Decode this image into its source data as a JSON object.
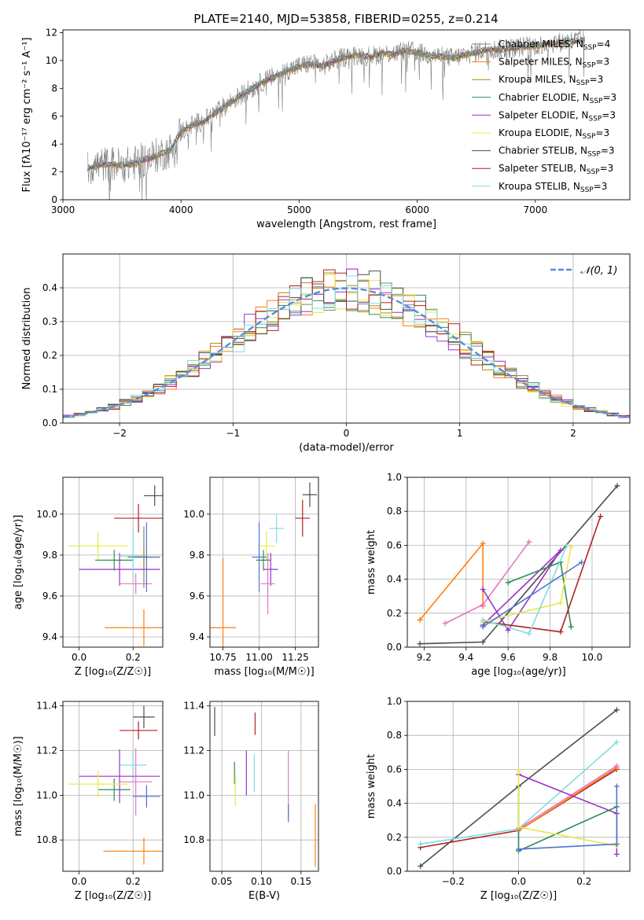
{
  "figure": {
    "title": "PLATE=2140, MJD=53858, FIBERID=0255, z=0.214"
  },
  "colors": {
    "Chabrier MILES": "#808080",
    "Salpeter MILES": "#ff7f0e",
    "Kroupa MILES": "#b8860b",
    "Chabrier ELODIE": "#2e8b57",
    "Salpeter ELODIE": "#9932cc",
    "Kroupa ELODIE": "#e8e84a",
    "Chabrier STELIB": "#4d4d4d",
    "Salpeter STELIB": "#b22222",
    "Kroupa STELIB": "#7fdde0",
    "normal": "#5b8bd9"
  },
  "chart_data": [
    {
      "id": "spectrum",
      "type": "line",
      "xlabel": "wavelength [Angstrom, rest frame]",
      "ylabel": "Flux [fλ10⁻¹⁷ erg cm⁻² s⁻¹ A⁻¹]",
      "xlim": [
        3000,
        7800
      ],
      "ylim": [
        0,
        12.2
      ],
      "xticks": [
        3000,
        4000,
        5000,
        6000,
        7000
      ],
      "yticks": [
        0,
        2,
        4,
        6,
        8,
        10,
        12
      ],
      "grid": false,
      "legend_position": "top-right",
      "legend": [
        "Chabrier MILES, N_SSP=4",
        "Salpeter MILES, N_SSP=3",
        "Kroupa MILES, N_SSP=3",
        "Chabrier ELODIE, N_SSP=3",
        "Salpeter ELODIE, N_SSP=3",
        "Kroupa ELODIE, N_SSP=3",
        "Chabrier STELIB, N_SSP=3",
        "Salpeter STELIB, N_SSP=3",
        "Kroupa STELIB, N_SSP=3"
      ],
      "continuum": {
        "x": [
          3200,
          3300,
          3400,
          3500,
          3600,
          3700,
          3800,
          3900,
          4000,
          4100,
          4200,
          4300,
          4400,
          4500,
          4600,
          4700,
          4800,
          4900,
          5000,
          5100,
          5200,
          5300,
          5400,
          5500,
          5600,
          5700,
          5800,
          5900,
          6000,
          6100,
          6200,
          6300,
          6400,
          6500,
          6600,
          6700,
          6800,
          6900,
          7000,
          7100,
          7200,
          7300,
          7400
        ],
        "y": [
          2.2,
          2.5,
          2.6,
          2.5,
          2.6,
          2.9,
          3.2,
          3.5,
          4.9,
          5.4,
          5.7,
          6.3,
          6.9,
          7.5,
          8.0,
          8.5,
          8.9,
          9.3,
          9.6,
          9.8,
          9.6,
          10.0,
          10.3,
          10.4,
          10.3,
          10.5,
          10.5,
          10.7,
          10.6,
          10.4,
          10.3,
          10.2,
          10.4,
          10.6,
          10.8,
          10.8,
          10.9,
          11.0,
          11.1,
          11.2,
          11.3,
          11.4,
          11.5
        ]
      }
    },
    {
      "id": "residuals",
      "type": "histogram",
      "xlabel": "(data-model)/error",
      "ylabel": "Normed distribution",
      "xlim": [
        -2.5,
        2.5
      ],
      "ylim": [
        0,
        0.5
      ],
      "xticks": [
        -2,
        -1,
        0,
        1,
        2
      ],
      "yticks": [
        0.0,
        0.1,
        0.2,
        0.3,
        0.4
      ],
      "grid": true,
      "legend_position": "top-right",
      "normal_label": "𝒩(0, 1)",
      "bin_width": 0.1,
      "bin_start": -2.5
    },
    {
      "id": "age-Z",
      "type": "errorbar",
      "xlabel": "Z [log₁₀(Z/Z☉)]",
      "ylabel": "age  [log₁₀(age/yr)]",
      "xlim": [
        -0.06,
        0.31
      ],
      "ylim": [
        9.35,
        10.18
      ],
      "xticks": [
        0.0,
        0.2
      ],
      "yticks": [
        9.4,
        9.6,
        9.8,
        10.0
      ],
      "grid": true,
      "points": [
        {
          "m": "Chabrier MILES",
          "x": 0.24,
          "y": 9.79,
          "xe": 0.06,
          "ye": 0.15
        },
        {
          "m": "Salpeter MILES",
          "x": 0.24,
          "y": 9.445,
          "xe": 0.145,
          "ye": 0.09
        },
        {
          "m": "Kroupa MILES",
          "x": 0.24,
          "y": 9.79,
          "xe": 0.03,
          "ye": 0.05
        },
        {
          "m": "Chabrier ELODIE",
          "x": 0.13,
          "y": 9.775,
          "xe": 0.07,
          "ye": 0.05
        },
        {
          "m": "Salpeter ELODIE",
          "x": 0.15,
          "y": 9.73,
          "xe": 0.15,
          "ye": 0.08
        },
        {
          "m": "Kroupa ELODIE",
          "x": 0.07,
          "y": 9.845,
          "xe": 0.11,
          "ye": 0.07
        },
        {
          "m": "Chabrier STELIB",
          "x": 0.28,
          "y": 10.09,
          "xe": 0.04,
          "ye": 0.05
        },
        {
          "m": "Salpeter STELIB",
          "x": 0.22,
          "y": 9.98,
          "xe": 0.09,
          "ye": 0.07
        },
        {
          "m": "Kroupa STELIB",
          "x": 0.2,
          "y": 9.795,
          "xe": 0.05,
          "ye": 0.13
        },
        {
          "m": "pink",
          "x": 0.21,
          "y": 9.66,
          "xe": 0.06,
          "ye": 0.05
        },
        {
          "m": "blue",
          "x": 0.25,
          "y": 9.79,
          "xe": 0.05,
          "ye": 0.17
        }
      ]
    },
    {
      "id": "age-mass",
      "type": "errorbar",
      "xlabel": "mass [log₁₀(M/M☉)]",
      "xlim": [
        10.66,
        11.41
      ],
      "ylim": [
        9.35,
        10.18
      ],
      "xticks": [
        10.75,
        11.0,
        11.25
      ],
      "yticks": [
        9.4,
        9.6,
        9.8,
        10.0
      ],
      "grid": true,
      "points": [
        {
          "m": "Salpeter MILES",
          "x": 10.75,
          "y": 9.445,
          "xe": 0.09,
          "ye": 0.34
        },
        {
          "m": "Kroupa ELODIE",
          "x": 11.05,
          "y": 9.845,
          "xe": 0.06,
          "ye": 0.07
        },
        {
          "m": "Chabrier ELODIE",
          "x": 11.03,
          "y": 9.775,
          "xe": 0.05,
          "ye": 0.05
        },
        {
          "m": "blue",
          "x": 11.0,
          "y": 9.79,
          "xe": 0.05,
          "ye": 0.17
        },
        {
          "m": "Salpeter ELODIE",
          "x": 11.08,
          "y": 9.73,
          "xe": 0.05,
          "ye": 0.08
        },
        {
          "m": "pink",
          "x": 11.06,
          "y": 9.66,
          "xe": 0.05,
          "ye": 0.15
        },
        {
          "m": "Kroupa STELIB",
          "x": 11.12,
          "y": 9.93,
          "xe": 0.05,
          "ye": 0.07
        },
        {
          "m": "Salpeter STELIB",
          "x": 11.3,
          "y": 9.98,
          "xe": 0.05,
          "ye": 0.09
        },
        {
          "m": "Chabrier STELIB",
          "x": 11.35,
          "y": 10.095,
          "xe": 0.05,
          "ye": 0.06
        }
      ]
    },
    {
      "id": "mass-weight-age",
      "type": "line",
      "xlabel": "age  [log₁₀(age/yr)]",
      "ylabel": "mass weight",
      "xlim": [
        9.12,
        10.18
      ],
      "ylim": [
        0,
        1.0
      ],
      "xticks": [
        9.2,
        9.4,
        9.6,
        9.8,
        10.0
      ],
      "yticks": [
        0.0,
        0.2,
        0.4,
        0.6,
        0.8,
        1.0
      ],
      "grid": true,
      "series": [
        {
          "m": "Chabrier STELIB",
          "x": [
            9.18,
            9.48,
            10.12
          ],
          "y": [
            0.02,
            0.03,
            0.95
          ]
        },
        {
          "m": "Salpeter MILES",
          "x": [
            9.18,
            9.48,
            9.48
          ],
          "y": [
            0.16,
            0.61,
            0.24
          ]
        },
        {
          "m": "pink",
          "x": [
            9.3,
            9.48,
            9.7
          ],
          "y": [
            0.14,
            0.25,
            0.62
          ]
        },
        {
          "m": "Salpeter ELODIE",
          "x": [
            9.48,
            9.6,
            9.85,
            9.48
          ],
          "y": [
            0.34,
            0.1,
            0.57,
            0.13
          ]
        },
        {
          "m": "Chabrier ELODIE",
          "x": [
            9.6,
            9.85,
            9.9
          ],
          "y": [
            0.38,
            0.5,
            0.12
          ]
        },
        {
          "m": "Salpeter STELIB",
          "x": [
            9.48,
            9.85,
            10.04
          ],
          "y": [
            0.15,
            0.09,
            0.77
          ]
        },
        {
          "m": "Kroupa ELODIE",
          "x": [
            9.48,
            9.85,
            9.9
          ],
          "y": [
            0.15,
            0.26,
            0.59
          ]
        },
        {
          "m": "Kroupa STELIB",
          "x": [
            9.48,
            9.7,
            9.88
          ],
          "y": [
            0.16,
            0.08,
            0.6
          ]
        },
        {
          "m": "blue",
          "x": [
            9.48,
            9.95
          ],
          "y": [
            0.12,
            0.5
          ]
        }
      ]
    },
    {
      "id": "mass-Z",
      "type": "errorbar",
      "xlabel": "Z [log₁₀(Z/Z☉)]",
      "ylabel": "mass [log₁₀(M/M☉)]",
      "xlim": [
        -0.06,
        0.31
      ],
      "ylim": [
        10.66,
        11.42
      ],
      "xticks": [
        0.0,
        0.2
      ],
      "yticks": [
        10.8,
        11.0,
        11.2,
        11.4
      ],
      "grid": true,
      "points": [
        {
          "m": "Chabrier STELIB",
          "x": 0.24,
          "y": 11.35,
          "xe": 0.04,
          "ye": 0.05
        },
        {
          "m": "Salpeter STELIB",
          "x": 0.22,
          "y": 11.29,
          "xe": 0.07,
          "ye": 0.04
        },
        {
          "m": "Kroupa STELIB",
          "x": 0.2,
          "y": 11.135,
          "xe": 0.05,
          "ye": 0.07
        },
        {
          "m": "Chabrier ELODIE",
          "x": 0.13,
          "y": 11.025,
          "xe": 0.06,
          "ye": 0.05
        },
        {
          "m": "Salpeter ELODIE",
          "x": 0.15,
          "y": 11.085,
          "xe": 0.15,
          "ye": 0.12
        },
        {
          "m": "Kroupa ELODIE",
          "x": 0.07,
          "y": 11.05,
          "xe": 0.11,
          "ye": 0.06
        },
        {
          "m": "pink",
          "x": 0.21,
          "y": 11.06,
          "xe": 0.06,
          "ye": 0.15
        },
        {
          "m": "blue",
          "x": 0.25,
          "y": 10.995,
          "xe": 0.05,
          "ye": 0.05
        },
        {
          "m": "Salpeter MILES",
          "x": 0.24,
          "y": 10.75,
          "xe": 0.15,
          "ye": 0.06
        }
      ]
    },
    {
      "id": "mass-ebv",
      "type": "errorbar",
      "xlabel": "E(B-V)",
      "xlim": [
        0.035,
        0.172
      ],
      "ylim": [
        10.66,
        11.42
      ],
      "xticks": [
        0.05,
        0.1,
        0.15
      ],
      "yticks": [
        10.8,
        11.0,
        11.2,
        11.4
      ],
      "grid": true,
      "points": [
        {
          "m": "Chabrier STELIB",
          "x": 0.041,
          "y": 11.33,
          "xe": 0,
          "ye": 0.065
        },
        {
          "m": "Chabrier ELODIE",
          "x": 0.066,
          "y": 11.1,
          "xe": 0,
          "ye": 0.05
        },
        {
          "m": "Kroupa ELODIE",
          "x": 0.067,
          "y": 11.02,
          "xe": 0,
          "ye": 0.07
        },
        {
          "m": "Salpeter ELODIE",
          "x": 0.081,
          "y": 11.1,
          "xe": 0,
          "ye": 0.1
        },
        {
          "m": "Kroupa STELIB",
          "x": 0.091,
          "y": 11.1,
          "xe": 0,
          "ye": 0.085
        },
        {
          "m": "Salpeter STELIB",
          "x": 0.092,
          "y": 11.32,
          "xe": 0,
          "ye": 0.05
        },
        {
          "m": "pink",
          "x": 0.134,
          "y": 11.05,
          "xe": 0,
          "ye": 0.15
        },
        {
          "m": "blue",
          "x": 0.134,
          "y": 10.92,
          "xe": 0,
          "ye": 0.04
        },
        {
          "m": "Salpeter MILES",
          "x": 0.168,
          "y": 10.82,
          "xe": 0,
          "ye": 0.14
        }
      ]
    },
    {
      "id": "mass-weight-Z",
      "type": "line",
      "xlabel": "Z [log₁₀(Z/Z☉)]",
      "ylabel": "mass weight",
      "xlim": [
        -0.34,
        0.34
      ],
      "ylim": [
        0,
        1.0
      ],
      "xticks": [
        -0.2,
        0.0,
        0.2
      ],
      "yticks": [
        0.0,
        0.2,
        0.4,
        0.6,
        0.8,
        1.0
      ],
      "grid": true,
      "series": [
        {
          "m": "Chabrier STELIB",
          "x": [
            -0.3,
            0.0,
            0.3
          ],
          "y": [
            0.03,
            0.5,
            0.95
          ]
        },
        {
          "m": "Salpeter STELIB",
          "x": [
            -0.3,
            0.0,
            0.3
          ],
          "y": [
            0.14,
            0.24,
            0.6
          ]
        },
        {
          "m": "Kroupa STELIB",
          "x": [
            -0.3,
            0.0,
            0.3
          ],
          "y": [
            0.16,
            0.25,
            0.76
          ]
        },
        {
          "m": "Salpeter MILES",
          "x": [
            0.0,
            0.3
          ],
          "y": [
            0.24,
            0.61
          ]
        },
        {
          "m": "pink",
          "x": [
            0.0,
            0.3
          ],
          "y": [
            0.25,
            0.62
          ]
        },
        {
          "m": "Salpeter ELODIE",
          "x": [
            0.0,
            0.3,
            0.3
          ],
          "y": [
            0.57,
            0.34,
            0.1
          ]
        },
        {
          "m": "Chabrier ELODIE",
          "x": [
            0.0,
            0.0,
            0.3
          ],
          "y": [
            0.5,
            0.12,
            0.38
          ]
        },
        {
          "m": "Kroupa ELODIE",
          "x": [
            0.0,
            0.0,
            0.3
          ],
          "y": [
            0.59,
            0.26,
            0.15
          ]
        },
        {
          "m": "blue",
          "x": [
            0.0,
            0.3,
            0.3
          ],
          "y": [
            0.13,
            0.16,
            0.5
          ]
        }
      ]
    }
  ]
}
